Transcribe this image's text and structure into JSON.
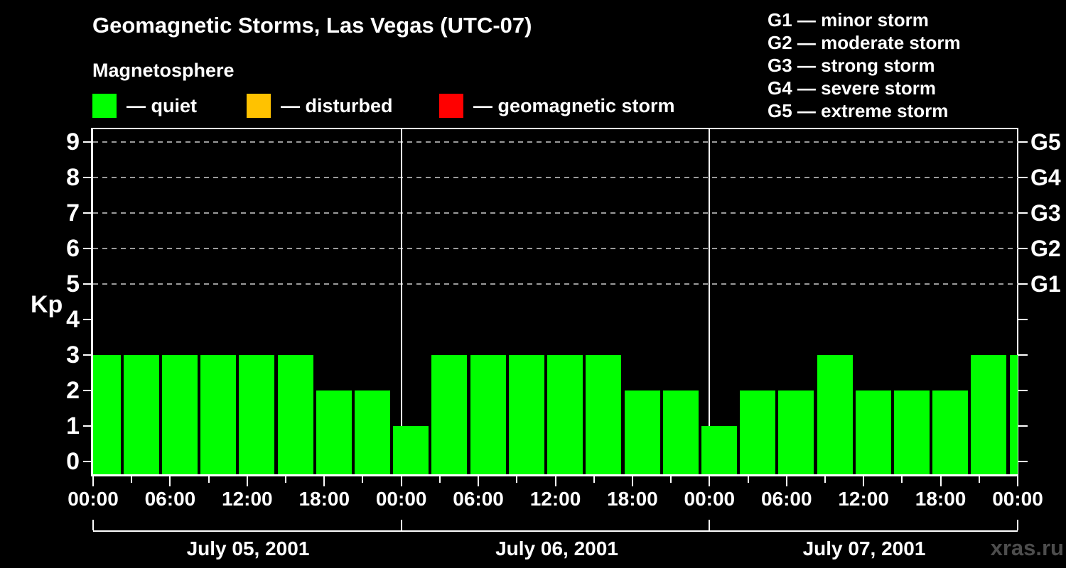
{
  "header": {
    "title": "Geomagnetic Storms, Las Vegas (UTC-07)",
    "subtitle": "Magnetosphere"
  },
  "legend": {
    "items": [
      {
        "name": "quiet",
        "label": "— quiet",
        "color": "#00ff00"
      },
      {
        "name": "disturbed",
        "label": "— disturbed",
        "color": "#ffc200"
      },
      {
        "name": "geomagnetic-storm",
        "label": "— geomagnetic storm",
        "color": "#ff0000"
      }
    ]
  },
  "storm_scale_legend": {
    "lines": [
      "G1 — minor storm",
      "G2 — moderate storm",
      "G3 — strong storm",
      "G4 — severe storm",
      "G5 — extreme storm"
    ]
  },
  "watermark": "xras.ru",
  "chart_data": {
    "type": "bar",
    "title": "Geomagnetic Storms, Las Vegas (UTC-07)",
    "ylabel": "Kp",
    "ylim": [
      0,
      9
    ],
    "y_tick_labels": [
      "0",
      "1",
      "2",
      "3",
      "4",
      "5",
      "6",
      "7",
      "8",
      "9"
    ],
    "grid_kp_levels": [
      5,
      6,
      7,
      8,
      9
    ],
    "grid": "dashed horizontal lines at Kp 5-9",
    "right_axis_labels": [
      {
        "label": "G1",
        "kp": 5
      },
      {
        "label": "G2",
        "kp": 6
      },
      {
        "label": "G3",
        "kp": 7
      },
      {
        "label": "G4",
        "kp": 8
      },
      {
        "label": "G5",
        "kp": 9
      }
    ],
    "bar_color": "#00ff00",
    "interval_hours": 3,
    "total_hours": 72,
    "x_tick_step_hours": 3,
    "x_label_step_hours": 6,
    "x_tick_labels": [
      "00:00",
      "06:00",
      "12:00",
      "18:00",
      "00:00",
      "06:00",
      "12:00",
      "18:00",
      "00:00",
      "06:00",
      "12:00",
      "18:00",
      "00:00"
    ],
    "day_boundaries_hours": [
      24,
      48
    ],
    "days": [
      {
        "label": "July 05, 2001",
        "kp_values": [
          3,
          3,
          3,
          3,
          3,
          3,
          2,
          2
        ]
      },
      {
        "label": "July 06, 2001",
        "kp_values": [
          1,
          3,
          3,
          3,
          3,
          3,
          2,
          2
        ]
      },
      {
        "label": "July 07, 2001",
        "kp_values": [
          1,
          2,
          2,
          3,
          2,
          2,
          2,
          3
        ]
      }
    ],
    "trailing_bar_kp": 3,
    "legend_position": "top-left and top-right"
  }
}
